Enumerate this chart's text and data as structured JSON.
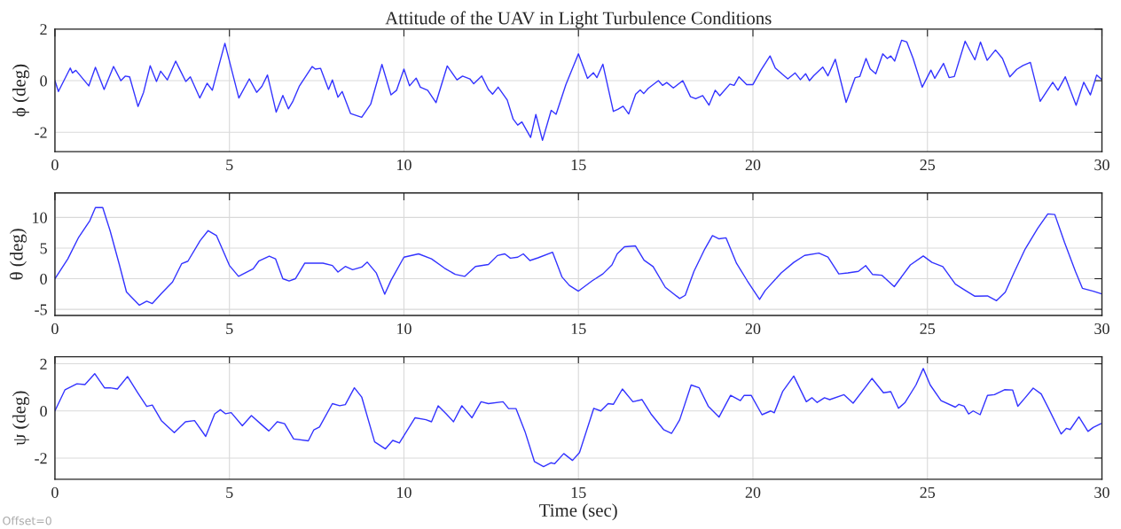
{
  "chart_data": [
    {
      "type": "line",
      "title": "Attitude of the UAV in Light Turbulence Conditions",
      "ylabel": "ϕ (deg)",
      "xlim": [
        0,
        30
      ],
      "xticks": [
        0,
        5,
        10,
        15,
        20,
        25,
        30
      ],
      "ylim": [
        -2.75,
        2
      ],
      "yticks": [
        -2,
        0,
        2
      ],
      "grid": true,
      "series": [
        {
          "color": "#3333ff",
          "x": [
            0,
            0.1,
            0.44,
            0.5,
            0.6,
            0.97,
            1.16,
            1.41,
            1.68,
            1.89,
            2.02,
            2.14,
            2.38,
            2.54,
            2.73,
            2.91,
            3.03,
            3.22,
            3.46,
            3.59,
            3.75,
            3.88,
            4.15,
            4.36,
            4.51,
            4.7,
            4.87,
            5.27,
            5.57,
            5.78,
            5.93,
            6.09,
            6.34,
            6.53,
            6.69,
            6.81,
            7.0,
            7.37,
            7.46,
            7.61,
            7.84,
            7.95,
            8.11,
            8.23,
            8.47,
            8.79,
            9.05,
            9.37,
            9.63,
            9.79,
            10.0,
            10.16,
            10.35,
            10.47,
            10.68,
            10.92,
            11.24,
            11.52,
            11.68,
            11.89,
            12.0,
            12.23,
            12.42,
            12.54,
            12.7,
            12.96,
            13.13,
            13.26,
            13.38,
            13.63,
            13.78,
            13.97,
            14.22,
            14.36,
            14.64,
            15.0,
            15.26,
            15.43,
            15.53,
            15.7,
            16.0,
            16.13,
            16.28,
            16.44,
            16.64,
            16.77,
            16.87,
            17.0,
            17.29,
            17.41,
            17.53,
            17.72,
            17.99,
            18.21,
            18.36,
            18.56,
            18.74,
            18.92,
            19.05,
            19.34,
            19.46,
            19.6,
            19.82,
            20.0,
            20.23,
            20.49,
            20.64,
            20.85,
            21.0,
            21.21,
            21.36,
            21.51,
            21.62,
            21.74,
            22.0,
            22.15,
            22.36,
            22.67,
            22.93,
            23.06,
            23.24,
            23.36,
            23.52,
            23.72,
            23.85,
            23.95,
            24.06,
            24.26,
            24.41,
            24.59,
            24.85,
            25.1,
            25.21,
            25.46,
            25.62,
            25.77,
            26.08,
            26.36,
            26.52,
            26.71,
            26.95,
            27.15,
            27.36,
            27.56,
            27.74,
            27.95,
            28.23,
            28.59,
            28.74,
            28.95,
            29.26,
            29.48,
            29.67,
            29.85,
            30.0
          ],
          "values": [
            0,
            -0.42,
            0.49,
            0.3,
            0.4,
            -0.2,
            0.52,
            -0.34,
            0.55,
            0,
            0.18,
            0.15,
            -1.0,
            -0.45,
            0.58,
            -0.03,
            0.37,
            0.03,
            0.76,
            0.4,
            -0.03,
            0.15,
            -0.67,
            -0.1,
            -0.37,
            0.6,
            1.45,
            -0.67,
            0.07,
            -0.45,
            -0.22,
            0.22,
            -1.22,
            -0.57,
            -1.09,
            -0.82,
            -0.22,
            0.55,
            0.45,
            0.48,
            -0.34,
            0.03,
            -0.64,
            -0.42,
            -1.27,
            -1.42,
            -0.9,
            0.63,
            -0.55,
            -0.37,
            0.45,
            -0.2,
            0.1,
            -0.25,
            -0.37,
            -0.85,
            0.57,
            0.03,
            0.18,
            0.07,
            -0.12,
            0.18,
            -0.34,
            -0.52,
            -0.25,
            -0.75,
            -1.49,
            -1.72,
            -1.6,
            -2.2,
            -1.31,
            -2.31,
            -1.15,
            -1.3,
            -0.15,
            1.04,
            0.09,
            0.31,
            0.12,
            0.64,
            -1.19,
            -1.11,
            -0.99,
            -1.29,
            -0.52,
            -0.36,
            -0.5,
            -0.3,
            0,
            -0.18,
            -0.07,
            -0.28,
            0,
            -0.62,
            -0.7,
            -0.58,
            -0.95,
            -0.37,
            -0.58,
            -0.13,
            -0.18,
            0.15,
            -0.15,
            -0.15,
            0.41,
            0.96,
            0.49,
            0.24,
            0.07,
            0.3,
            0.04,
            0.27,
            0,
            0.19,
            0.53,
            0.19,
            0.83,
            -0.84,
            0.12,
            0.16,
            0.86,
            0.46,
            0.27,
            1.04,
            0.86,
            0.96,
            0.76,
            1.57,
            1.5,
            0.86,
            -0.25,
            0.41,
            0.09,
            0.67,
            0.12,
            0.16,
            1.53,
            0.81,
            1.5,
            0.79,
            1.19,
            0.86,
            0.15,
            0.44,
            0.59,
            0.71,
            -0.8,
            -0.06,
            -0.37,
            0.15,
            -0.95,
            -0.06,
            -0.55,
            0.22,
            0.04
          ]
        }
      ]
    },
    {
      "type": "line",
      "ylabel": "θ (deg)",
      "xlim": [
        0,
        30
      ],
      "xticks": [
        0,
        5,
        10,
        15,
        20,
        25,
        30
      ],
      "ylim": [
        -6,
        14
      ],
      "yticks": [
        -5,
        0,
        5,
        10
      ],
      "grid": true,
      "series": [
        {
          "color": "#3333ff",
          "x": [
            0,
            0.37,
            0.68,
            1.0,
            1.16,
            1.37,
            1.58,
            1.84,
            2.05,
            2.42,
            2.63,
            2.79,
            3.05,
            3.37,
            3.63,
            3.81,
            4.16,
            4.39,
            4.63,
            5.0,
            5.26,
            5.68,
            5.84,
            6.14,
            6.32,
            6.53,
            6.71,
            6.89,
            7.16,
            7.68,
            7.95,
            8.11,
            8.32,
            8.53,
            8.79,
            8.95,
            9.21,
            9.45,
            9.63,
            10.0,
            10.42,
            10.79,
            11.16,
            11.47,
            11.74,
            12.05,
            12.42,
            12.68,
            12.89,
            13.05,
            13.26,
            13.42,
            13.61,
            13.84,
            14.26,
            14.53,
            14.74,
            15.0,
            15.39,
            15.7,
            15.96,
            16.11,
            16.32,
            16.63,
            16.88,
            17.14,
            17.49,
            17.9,
            18.06,
            18.31,
            18.62,
            18.84,
            19.03,
            19.23,
            19.53,
            19.84,
            20.19,
            20.35,
            20.81,
            21.17,
            21.48,
            21.89,
            22.15,
            22.46,
            22.72,
            23.02,
            23.23,
            23.43,
            23.69,
            24.05,
            24.51,
            24.88,
            25.13,
            25.44,
            25.8,
            26.06,
            26.36,
            26.72,
            26.98,
            27.23,
            27.49,
            27.8,
            28.16,
            28.45,
            28.65,
            28.93,
            29.24,
            29.44,
            29.75,
            29.97
          ],
          "values": [
            0,
            3.24,
            6.76,
            9.46,
            11.6,
            11.6,
            7.84,
            2.43,
            -2.16,
            -4.32,
            -3.68,
            -4.05,
            -2.43,
            -0.54,
            2.43,
            2.86,
            6.2,
            7.84,
            7.03,
            2.16,
            0.38,
            1.62,
            2.86,
            3.68,
            3.24,
            0,
            -0.38,
            0,
            2.54,
            2.54,
            2.16,
            1.08,
            2.0,
            1.46,
            1.89,
            2.7,
            0.92,
            -2.54,
            -0.27,
            3.51,
            4.05,
            3.24,
            1.73,
            0.7,
            0.38,
            2.0,
            2.32,
            3.78,
            4.05,
            3.35,
            3.51,
            4.05,
            2.97,
            3.4,
            4.32,
            0.27,
            -1.1,
            -2.03,
            -0.36,
            0.78,
            2.24,
            4.06,
            5.21,
            5.36,
            3.02,
            1.98,
            -1.41,
            -3.23,
            -2.71,
            1.2,
            4.84,
            7.03,
            6.51,
            6.67,
            2.5,
            -0.36,
            -3.39,
            -1.93,
            0.94,
            2.66,
            3.8,
            4.17,
            3.54,
            0.78,
            0.94,
            1.2,
            2.14,
            0.68,
            0.57,
            -1.3,
            2.24,
            3.7,
            2.66,
            1.98,
            -0.89,
            -1.82,
            -2.86,
            -2.81,
            -3.59,
            -2.19,
            1.09,
            4.84,
            8.23,
            10.57,
            10.47,
            5.89,
            1.2,
            -1.56,
            -2.03,
            -2.45
          ]
        }
      ]
    },
    {
      "type": "line",
      "ylabel": "ψ (deg)",
      "xlabel": "Time (sec)",
      "xlim": [
        0,
        30
      ],
      "xticks": [
        0,
        5,
        10,
        15,
        20,
        25,
        30
      ],
      "ylim": [
        -2.9,
        2.3
      ],
      "yticks": [
        -2,
        0,
        2
      ],
      "grid": true,
      "annotations": [
        "Offset=0"
      ],
      "series": [
        {
          "color": "#3333ff",
          "x": [
            0,
            0.29,
            0.63,
            0.86,
            1.14,
            1.42,
            1.58,
            1.79,
            2.08,
            2.37,
            2.63,
            2.79,
            3.05,
            3.42,
            3.74,
            4.0,
            4.32,
            4.58,
            4.74,
            4.89,
            5.05,
            5.37,
            5.63,
            5.89,
            6.13,
            6.37,
            6.58,
            6.84,
            7.26,
            7.42,
            7.58,
            7.95,
            8.16,
            8.32,
            8.58,
            8.79,
            9.16,
            9.47,
            9.68,
            9.87,
            10.32,
            10.63,
            10.79,
            10.98,
            11.21,
            11.42,
            11.66,
            11.95,
            12.21,
            12.42,
            12.84,
            13.0,
            13.21,
            13.47,
            13.74,
            14.0,
            14.21,
            14.32,
            14.58,
            14.83,
            15.03,
            15.44,
            15.64,
            15.85,
            16.0,
            16.26,
            16.56,
            16.82,
            17.08,
            17.44,
            17.67,
            17.9,
            18.23,
            18.46,
            18.72,
            19.03,
            19.36,
            19.64,
            19.75,
            19.95,
            20.26,
            20.51,
            20.61,
            20.85,
            21.17,
            21.53,
            21.69,
            21.84,
            22.05,
            22.2,
            22.61,
            22.87,
            23.23,
            23.41,
            23.74,
            23.95,
            24.17,
            24.36,
            24.67,
            24.88,
            25.08,
            25.39,
            25.8,
            25.9,
            26.05,
            26.18,
            26.31,
            26.51,
            26.72,
            26.92,
            27.21,
            27.44,
            27.59,
            27.8,
            28.03,
            28.26,
            28.47,
            28.83,
            28.98,
            29.09,
            29.34,
            29.6,
            29.75,
            29.97
          ],
          "values": [
            0,
            0.9,
            1.15,
            1.12,
            1.58,
            0.98,
            0.98,
            0.93,
            1.46,
            0.78,
            0.19,
            0.25,
            -0.41,
            -0.92,
            -0.46,
            -0.41,
            -1.08,
            -0.12,
            0.05,
            -0.12,
            -0.07,
            -0.63,
            -0.2,
            -0.54,
            -0.85,
            -0.46,
            -0.54,
            -1.19,
            -1.27,
            -0.8,
            -0.68,
            0.31,
            0.22,
            0.27,
            0.98,
            0.59,
            -1.31,
            -1.61,
            -1.25,
            -1.36,
            -0.29,
            -0.37,
            -0.46,
            0.22,
            -0.12,
            -0.46,
            0.22,
            -0.29,
            0.39,
            0.31,
            0.39,
            0.1,
            0.1,
            -0.88,
            -2.15,
            -2.36,
            -2.2,
            -2.24,
            -1.81,
            -2.1,
            -1.77,
            0.11,
            0,
            0.31,
            0.28,
            0.93,
            0.39,
            0.48,
            -0.13,
            -0.79,
            -0.95,
            -0.38,
            1.1,
            0.98,
            0.2,
            -0.26,
            0.66,
            0.44,
            0.66,
            0.66,
            -0.16,
            0,
            -0.08,
            0.82,
            1.48,
            0.39,
            0.56,
            0.36,
            0.56,
            0.48,
            0.69,
            0.33,
            1.02,
            1.38,
            0.77,
            0.82,
            0.11,
            0.36,
            1.1,
            1.8,
            1.1,
            0.44,
            0.16,
            0.28,
            0.2,
            -0.13,
            0,
            -0.16,
            0.66,
            0.69,
            0.9,
            0.89,
            0.2,
            0.56,
            0.97,
            0.72,
            0.11,
            -0.98,
            -0.74,
            -0.79,
            -0.25,
            -0.87,
            -0.7,
            -0.54
          ]
        }
      ]
    }
  ]
}
